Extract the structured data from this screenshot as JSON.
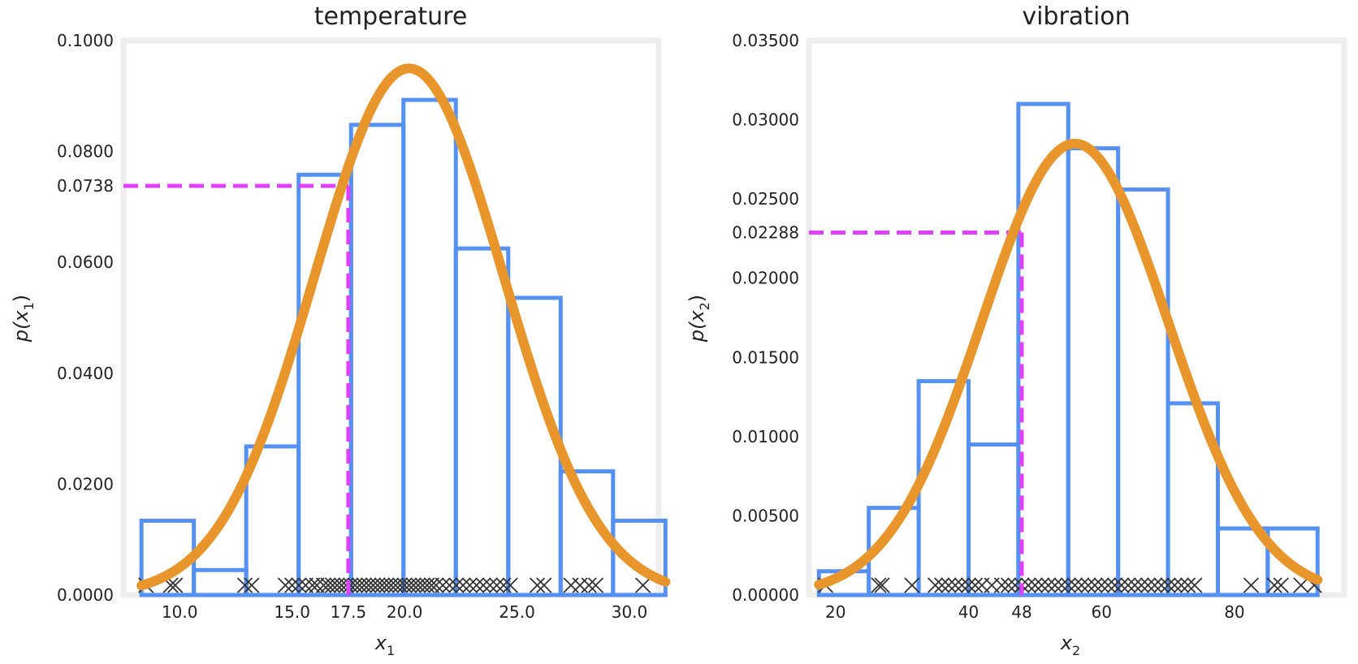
{
  "colors": {
    "hist": "#5591f2",
    "curve": "#e8962c",
    "marker": "#e040fb",
    "frame": "#eeeeee",
    "points": "#333333"
  },
  "chart_data": [
    {
      "type": "histogram+line",
      "title": "temperature",
      "xlabel": "x",
      "xlabel_sub": "1",
      "ylabel_pre": "p(x",
      "ylabel_sub": "1",
      "ylabel_post": ")",
      "xlim": [
        7.5,
        31.3
      ],
      "ylim": [
        0,
        0.1
      ],
      "yticks": [
        0.0,
        0.02,
        0.04,
        0.06,
        0.0738,
        0.08,
        0.1
      ],
      "ytick_labels": [
        "0.0000",
        "0.0200",
        "0.0400",
        "0.0600",
        "0.0738",
        "0.0800",
        "0.1000"
      ],
      "xticks": [
        10,
        15,
        17.5,
        20,
        25,
        30
      ],
      "xtick_labels": [
        "10.0",
        "15.0",
        "17.5",
        "20.0",
        "25.0",
        "30.0"
      ],
      "bin_edges": [
        8.3,
        10.63,
        12.96,
        15.29,
        17.62,
        19.95,
        22.28,
        24.61,
        26.94,
        29.27,
        31.6
      ],
      "bin_heights": [
        0.0134,
        0.0045,
        0.0268,
        0.0758,
        0.0848,
        0.0893,
        0.0625,
        0.0536,
        0.0223,
        0.0134
      ],
      "gaussian": {
        "mu": 20.2,
        "sigma": 4.2
      },
      "marker_point": {
        "x": 17.5,
        "y": 0.0738
      },
      "samples": [
        8.5,
        9.6,
        9.8,
        12.9,
        13.2,
        14.7,
        15.0,
        15.3,
        15.6,
        15.9,
        16.1,
        16.4,
        16.6,
        16.8,
        17.0,
        17.2,
        17.4,
        17.6,
        17.8,
        18.0,
        18.2,
        18.4,
        18.6,
        18.8,
        19.0,
        19.2,
        19.4,
        19.6,
        19.8,
        20.0,
        20.2,
        20.4,
        20.6,
        20.8,
        21.0,
        21.2,
        21.4,
        21.7,
        22.0,
        22.3,
        22.6,
        22.9,
        23.2,
        23.5,
        23.8,
        24.1,
        24.4,
        24.7,
        25.9,
        26.2,
        27.4,
        27.8,
        28.2,
        28.5,
        30.6
      ]
    },
    {
      "type": "histogram+line",
      "title": "vibration",
      "xlabel": "x",
      "xlabel_sub": "2",
      "ylabel_pre": "p(x",
      "ylabel_sub": "2",
      "ylabel_post": ")",
      "xlim": [
        16.0,
        96.5
      ],
      "ylim": [
        0,
        0.035
      ],
      "yticks": [
        0.0,
        0.005,
        0.01,
        0.015,
        0.02,
        0.02288,
        0.025,
        0.03,
        0.035
      ],
      "ytick_labels": [
        "0.00000",
        "0.00500",
        "0.01000",
        "0.01500",
        "0.02000",
        "0.02288",
        "0.02500",
        "0.03000",
        "0.03500"
      ],
      "xticks": [
        20,
        40,
        48,
        60,
        80
      ],
      "xtick_labels": [
        "20",
        "40",
        "48",
        "60",
        "80"
      ],
      "bin_edges": [
        17.5,
        25.0,
        32.5,
        40.0,
        47.5,
        55.0,
        62.5,
        70.0,
        77.5,
        85.0,
        92.5
      ],
      "bin_heights": [
        0.0015,
        0.0055,
        0.0135,
        0.0095,
        0.031,
        0.0282,
        0.0256,
        0.0121,
        0.0042,
        0.0042
      ],
      "gaussian": {
        "mu": 56.0,
        "sigma": 14.0
      },
      "marker_point": {
        "x": 48,
        "y": 0.02288
      },
      "samples": [
        18.5,
        26.5,
        27.0,
        31.5,
        35.0,
        36.0,
        37.0,
        38.0,
        39.0,
        40.0,
        41.0,
        42.0,
        43.5,
        45.0,
        46.0,
        47.0,
        48.0,
        49.0,
        50.0,
        51.0,
        52.0,
        53.0,
        54.0,
        55.0,
        56.0,
        57.0,
        58.0,
        59.0,
        60.0,
        61.0,
        62.0,
        63.0,
        64.0,
        65.0,
        66.0,
        67.0,
        68.0,
        69.0,
        70.0,
        71.0,
        72.0,
        73.0,
        74.0,
        82.5,
        86.0,
        87.0,
        90.0,
        92.0
      ]
    }
  ]
}
